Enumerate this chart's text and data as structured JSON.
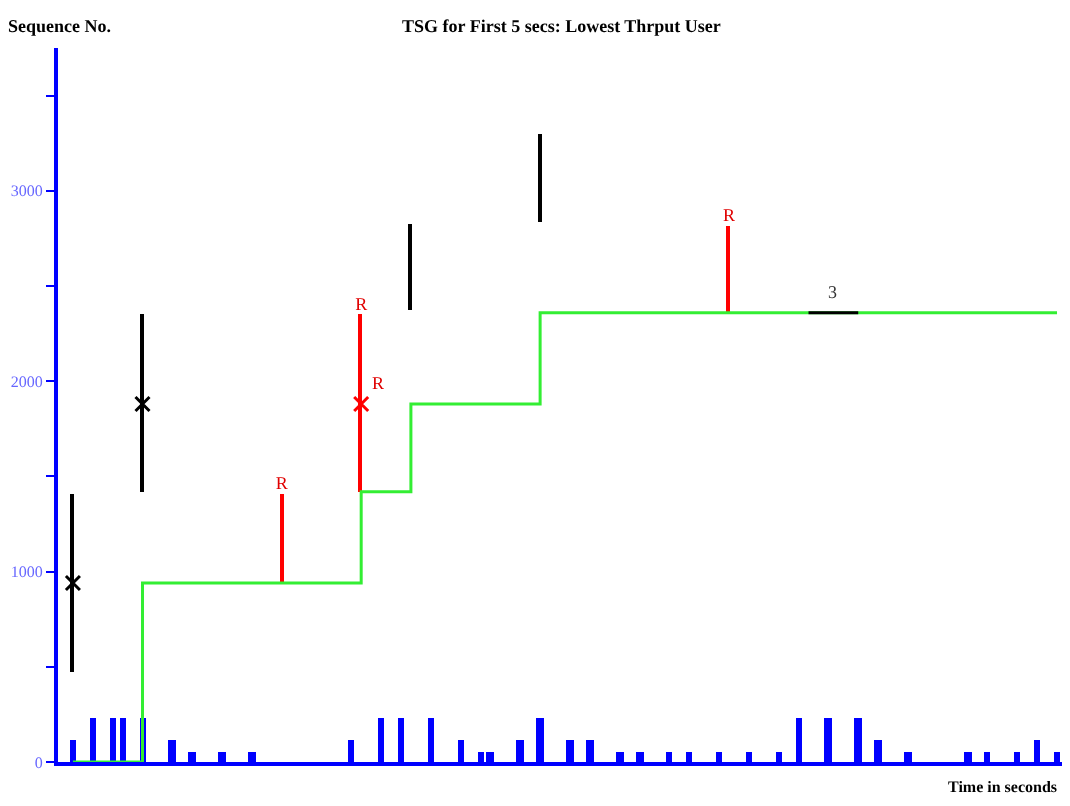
{
  "chart_data": {
    "type": "line",
    "title": "TSG for First 5 secs: Lowest Thrput User",
    "xlabel": "Time in seconds",
    "ylabel": "Sequence No.",
    "categories": [
      null,
      null,
      null,
      null,
      null,
      null,
      null,
      null,
      null,
      null,
      null,
      null,
      null,
      null,
      null,
      null,
      null,
      null,
      null,
      null,
      null,
      null,
      null,
      null,
      null,
      null,
      null,
      null,
      null,
      null,
      null,
      null,
      null,
      null,
      null,
      null,
      null,
      null,
      null,
      null,
      null,
      null,
      null,
      null,
      null,
      null,
      null,
      null,
      null,
      null,
      null,
      null,
      null,
      null,
      null,
      null,
      null,
      null,
      null,
      null,
      null,
      null,
      null,
      null,
      null,
      null,
      null,
      null,
      null,
      null,
      null,
      null,
      null,
      null,
      null,
      null,
      null,
      null,
      null,
      null,
      null,
      null,
      null,
      null,
      null,
      null,
      null,
      null,
      null,
      null,
      null,
      null,
      null,
      null,
      null,
      null,
      null,
      null,
      null,
      null,
      null
    ],
    "ylim": [
      0,
      3750
    ],
    "yticks": [
      0,
      {
        "value": 500,
        "label": null
      },
      1000,
      {
        "value": 1500,
        "label": null
      },
      2000,
      {
        "value": 2500,
        "label": null
      },
      3000,
      {
        "value": 3500,
        "label": null
      }
    ],
    "tick_labels": "y",
    "series": [
      {
        "type": "bar",
        "color": "#0000ff",
        "values": [
          null,
          120,
          null,
          230,
          null,
          230,
          230,
          null,
          230,
          null,
          null,
          120,
          null,
          50,
          null,
          null,
          50,
          null,
          null,
          50,
          null,
          null,
          null,
          null,
          null,
          null,
          null,
          null,
          null,
          120,
          null,
          null,
          230,
          null,
          230,
          null,
          null,
          230,
          null,
          null,
          120,
          null,
          50,
          50,
          null,
          null,
          120,
          null,
          230,
          null,
          null,
          120,
          null,
          120,
          null,
          null,
          50,
          null,
          50,
          null,
          null,
          50,
          null,
          50,
          null,
          null,
          50,
          null,
          null,
          50,
          null,
          null,
          50,
          null,
          230,
          null,
          null,
          230,
          null,
          null,
          230,
          null,
          120,
          null,
          null,
          50,
          null,
          null,
          null,
          null,
          null,
          50,
          null,
          50,
          null,
          null,
          50,
          null,
          120,
          null,
          50
        ]
      },
      {
        "type": "step",
        "color": "#33ee33",
        "values": [
          null,
          0,
          null,
          null,
          null,
          null,
          null,
          null,
          940,
          null,
          null,
          null,
          null,
          null,
          null,
          null,
          null,
          null,
          null,
          null,
          null,
          null,
          null,
          null,
          null,
          null,
          null,
          null,
          null,
          null,
          1420,
          null,
          null,
          null,
          null,
          1880,
          null,
          null,
          null,
          null,
          null,
          null,
          null,
          null,
          null,
          null,
          null,
          null,
          2360,
          null,
          null,
          null,
          null,
          null,
          null,
          null,
          null,
          null,
          null,
          null,
          null,
          null,
          null,
          null,
          null,
          null,
          null,
          null,
          null,
          null,
          null,
          null,
          null,
          null,
          null,
          null,
          null,
          null,
          null,
          null,
          null,
          null,
          null,
          null,
          null,
          null,
          null,
          null,
          null,
          null,
          null,
          null,
          null,
          null,
          null,
          null,
          null,
          null,
          null,
          null,
          2360
        ]
      },
      {
        "type": "bar",
        "color": "#000000",
        "values": [
          null,
          940,
          null,
          null,
          null,
          null,
          null,
          null,
          930,
          null,
          null,
          null,
          null,
          null,
          null,
          null,
          null,
          null,
          null,
          null,
          null,
          null,
          null,
          null,
          null,
          null,
          null,
          null,
          null,
          null,
          null,
          null,
          null,
          null,
          null,
          460,
          null,
          null,
          null,
          null,
          null,
          null,
          null,
          null,
          null,
          null,
          null,
          null,
          460,
          null,
          null,
          null,
          null,
          null,
          null,
          null,
          null,
          null,
          null,
          null,
          null,
          null,
          null,
          null,
          null,
          null,
          null,
          null,
          null,
          null,
          null,
          null,
          null,
          null,
          null,
          null,
          null,
          null,
          null,
          null,
          null,
          null,
          null,
          null,
          null,
          null,
          null,
          null,
          null,
          null,
          null,
          null,
          null,
          null,
          null,
          null,
          null,
          null,
          null,
          null,
          null
        ],
        "base": [
          null,
          470,
          null,
          null,
          null,
          null,
          null,
          null,
          1420,
          null,
          null,
          null,
          null,
          null,
          null,
          null,
          null,
          null,
          null,
          null,
          null,
          null,
          null,
          null,
          null,
          null,
          null,
          null,
          null,
          null,
          null,
          null,
          null,
          null,
          null,
          2370,
          null,
          null,
          null,
          null,
          null,
          null,
          null,
          null,
          null,
          null,
          null,
          null,
          2840,
          null,
          null,
          null,
          null,
          null,
          null,
          null,
          null,
          null,
          null,
          null,
          null,
          null,
          null,
          null,
          null,
          null,
          null,
          null,
          null,
          null,
          null,
          null,
          null,
          null,
          null,
          null,
          null,
          null,
          null,
          null,
          null,
          null,
          null,
          null,
          null,
          null,
          null,
          null,
          null,
          null,
          null,
          null,
          null,
          null,
          null,
          null,
          null,
          null,
          null,
          null,
          null
        ]
      },
      {
        "type": "scatter",
        "color": "#000000",
        "marker": "cross",
        "values": [
          null,
          940,
          null,
          null,
          null,
          null,
          null,
          null,
          1880,
          null,
          null,
          null,
          null,
          null,
          null,
          null,
          null,
          null,
          null,
          null,
          null,
          null,
          null,
          null,
          null,
          null,
          null,
          null,
          null,
          null,
          null,
          null,
          null,
          null,
          null,
          null,
          null,
          null,
          null,
          null,
          null,
          null,
          null,
          null,
          null,
          null,
          null,
          null,
          null,
          null,
          null,
          null,
          null,
          null,
          null,
          null,
          null,
          null,
          null,
          null,
          null,
          null,
          null,
          null,
          null,
          null,
          null,
          null,
          null,
          null,
          null,
          null,
          null,
          null,
          null,
          null,
          null,
          null,
          null,
          null,
          null,
          null,
          null,
          null,
          null,
          null,
          null,
          null,
          null,
          null,
          null,
          null,
          null,
          null,
          null,
          null,
          null,
          null,
          null,
          null,
          null
        ]
      },
      {
        "type": "bar",
        "color": "#ff0000",
        "values": [
          null,
          null,
          null,
          null,
          null,
          null,
          null,
          null,
          null,
          null,
          null,
          null,
          null,
          null,
          null,
          null,
          null,
          null,
          null,
          null,
          null,
          null,
          470,
          null,
          null,
          null,
          null,
          null,
          null,
          null,
          930,
          null,
          null,
          null,
          null,
          null,
          null,
          null,
          null,
          null,
          null,
          null,
          null,
          null,
          null,
          null,
          null,
          null,
          null,
          null,
          null,
          null,
          null,
          null,
          null,
          null,
          null,
          null,
          null,
          null,
          null,
          null,
          null,
          null,
          null,
          null,
          null,
          460,
          null,
          null,
          null,
          null,
          null,
          null,
          null,
          null,
          null,
          null,
          null,
          null,
          null,
          null,
          null,
          null,
          null,
          null,
          null,
          null,
          null,
          null,
          null,
          null,
          null,
          null,
          null,
          null,
          null,
          null,
          null,
          null,
          null
        ],
        "base": [
          null,
          null,
          null,
          null,
          null,
          null,
          null,
          null,
          null,
          null,
          null,
          null,
          null,
          null,
          null,
          null,
          null,
          null,
          null,
          null,
          null,
          null,
          940,
          null,
          null,
          null,
          null,
          null,
          null,
          null,
          1420,
          null,
          null,
          null,
          null,
          null,
          null,
          null,
          null,
          null,
          null,
          null,
          null,
          null,
          null,
          null,
          null,
          null,
          null,
          null,
          null,
          null,
          null,
          null,
          null,
          null,
          null,
          null,
          null,
          null,
          null,
          null,
          null,
          null,
          null,
          null,
          null,
          2360,
          null,
          null,
          null,
          null,
          null,
          null,
          null,
          null,
          null,
          null,
          null,
          null,
          null,
          null,
          null,
          null,
          null,
          null,
          null,
          null,
          null,
          null,
          null,
          null,
          null,
          null,
          null,
          null,
          null,
          null,
          null,
          null,
          null
        ],
        "value_labels": [
          null,
          null,
          null,
          null,
          null,
          null,
          null,
          null,
          null,
          null,
          null,
          null,
          null,
          null,
          null,
          null,
          null,
          null,
          null,
          null,
          null,
          null,
          "R",
          null,
          null,
          null,
          null,
          null,
          null,
          null,
          "R",
          null,
          null,
          null,
          null,
          null,
          null,
          null,
          null,
          null,
          null,
          null,
          null,
          null,
          null,
          null,
          null,
          null,
          null,
          null,
          null,
          null,
          null,
          null,
          null,
          null,
          null,
          null,
          null,
          null,
          null,
          null,
          null,
          null,
          null,
          null,
          null,
          "R",
          null,
          null,
          null,
          null,
          null,
          null,
          null,
          null,
          null,
          null,
          null,
          null,
          null,
          null,
          null,
          null,
          null,
          null,
          null,
          null,
          null,
          null,
          null,
          null,
          null,
          null,
          null,
          null,
          null,
          null,
          null,
          null,
          null
        ]
      },
      {
        "type": "scatter",
        "color": "#ff0000",
        "marker": "cross",
        "values": [
          null,
          null,
          null,
          null,
          null,
          null,
          null,
          null,
          null,
          null,
          null,
          null,
          null,
          null,
          null,
          null,
          null,
          null,
          null,
          null,
          null,
          null,
          null,
          null,
          null,
          null,
          null,
          null,
          null,
          null,
          1880,
          null,
          null,
          null,
          null,
          null,
          null,
          null,
          null,
          null,
          null,
          null,
          null,
          null,
          null,
          null,
          null,
          null,
          null,
          null,
          null,
          null,
          null,
          null,
          null,
          null,
          null,
          null,
          null,
          null,
          null,
          null,
          null,
          null,
          null,
          null,
          null,
          null,
          null,
          null,
          null,
          null,
          null,
          null,
          null,
          null,
          null,
          null,
          null,
          null,
          null,
          null,
          null,
          null,
          null,
          null,
          null,
          null,
          null,
          null,
          null,
          null,
          null,
          null,
          null,
          null,
          null,
          null,
          null,
          null,
          null
        ],
        "value_labels": [
          null,
          null,
          null,
          null,
          null,
          null,
          null,
          null,
          null,
          null,
          null,
          null,
          null,
          null,
          null,
          null,
          null,
          null,
          null,
          null,
          null,
          null,
          null,
          null,
          null,
          null,
          null,
          null,
          null,
          null,
          "R",
          null,
          null,
          null,
          null,
          null,
          null,
          null,
          null,
          null,
          null,
          null,
          null,
          null,
          null,
          null,
          null,
          null,
          null,
          null,
          null,
          null,
          null,
          null,
          null,
          null,
          null,
          null,
          null,
          null,
          null,
          null,
          null,
          null,
          null,
          null,
          null,
          null,
          null,
          null,
          null,
          null,
          null,
          null,
          null,
          null,
          null,
          null,
          null,
          null,
          null,
          null,
          null,
          null,
          null,
          null,
          null,
          null,
          null,
          null,
          null,
          null,
          null,
          null,
          null,
          null,
          null,
          null,
          null,
          null,
          null
        ]
      },
      {
        "name": "3",
        "color": "#000000",
        "values": [
          null,
          null,
          null,
          null,
          null,
          null,
          null,
          null,
          null,
          null,
          null,
          null,
          null,
          null,
          null,
          null,
          null,
          null,
          null,
          null,
          null,
          null,
          null,
          null,
          null,
          null,
          null,
          null,
          null,
          null,
          null,
          null,
          null,
          null,
          null,
          null,
          null,
          null,
          null,
          null,
          null,
          null,
          null,
          null,
          null,
          null,
          null,
          null,
          null,
          null,
          null,
          null,
          null,
          null,
          null,
          null,
          null,
          null,
          null,
          null,
          null,
          null,
          null,
          null,
          null,
          null,
          null,
          null,
          null,
          null,
          null,
          null,
          null,
          null,
          null,
          2360,
          null,
          null,
          null,
          null,
          2360,
          null,
          null,
          null,
          null,
          null,
          null,
          null,
          null,
          null,
          null,
          null,
          null,
          null,
          null,
          null,
          null,
          null,
          null,
          null,
          null
        ]
      }
    ]
  }
}
